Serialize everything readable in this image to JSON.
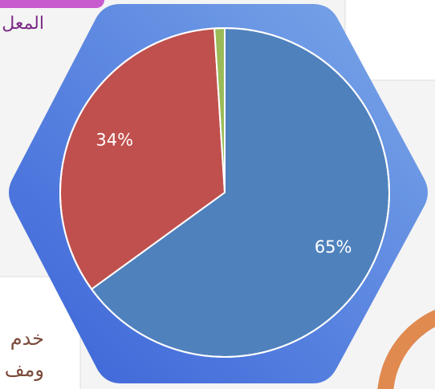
{
  "chart_data": {
    "type": "pie",
    "values": [
      65,
      34,
      1
    ],
    "value_labels": [
      "65%",
      "34%",
      null
    ],
    "colors": [
      "#4f81bd",
      "#c0504d",
      "#9bbb59"
    ],
    "start_angle": 0,
    "direction": "clockwise"
  },
  "texts": [
    "المعل",
    "خدم",
    "ومف"
  ]
}
